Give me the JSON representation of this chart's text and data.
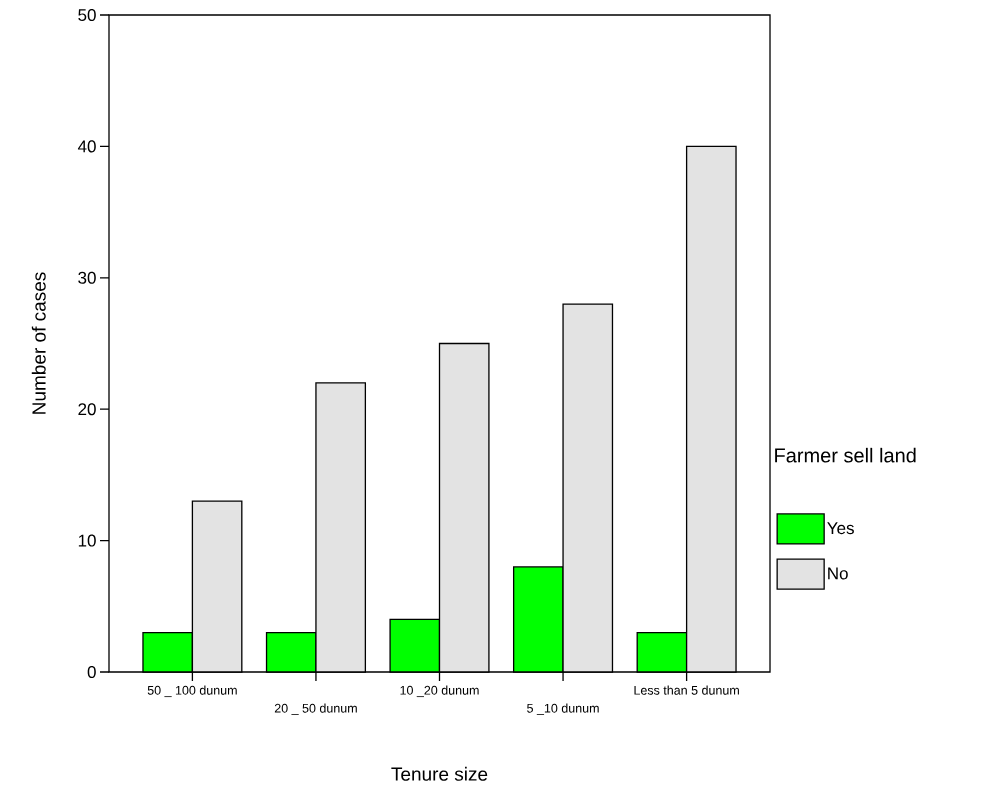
{
  "chart_data": {
    "type": "bar",
    "xlabel": "Tenure size",
    "ylabel": "Number of cases",
    "legend_title": "Farmer sell land",
    "categories": [
      "50 _ 100 dunum",
      "20 _ 50 dunum",
      "10 _20 dunum",
      "5 _10 dunum",
      "Less than 5 dunum"
    ],
    "series": [
      {
        "name": "Yes",
        "color": "#00ff00",
        "values": [
          3,
          3,
          4,
          8,
          3
        ]
      },
      {
        "name": "No",
        "color": "#e3e3e3",
        "values": [
          13,
          22,
          25,
          28,
          40
        ]
      }
    ],
    "ylim": [
      0,
      50
    ],
    "yticks": [
      0,
      10,
      20,
      30,
      40,
      50
    ],
    "grid": false,
    "legend": "right"
  }
}
